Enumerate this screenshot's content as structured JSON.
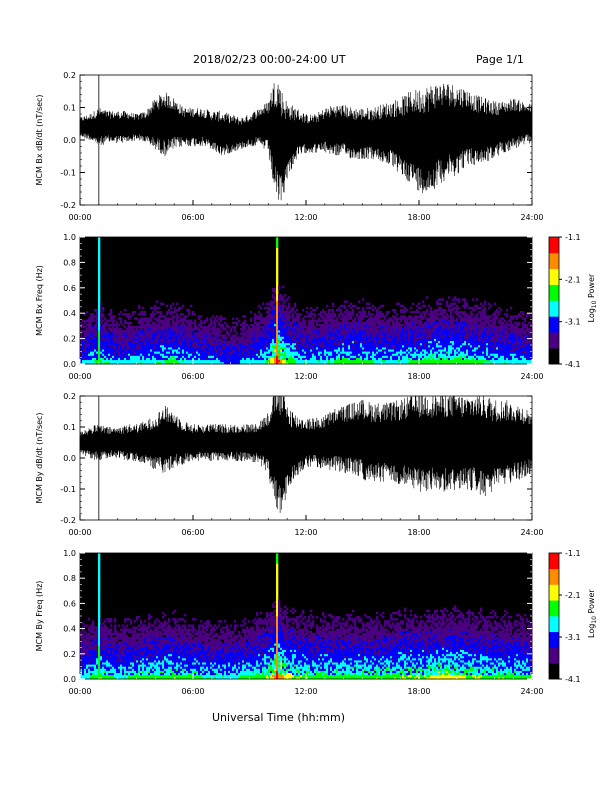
{
  "header": {
    "date_range": "2018/02/23  00:00-24:00 UT",
    "page_label": "Page 1/1"
  },
  "x_axis": {
    "label": "Universal Time (hh:mm)",
    "ticks": [
      "00:00",
      "06:00",
      "12:00",
      "18:00",
      "24:00"
    ]
  },
  "colors": {
    "trace": "#000000",
    "background_spectrogram": "#000000"
  },
  "colorbar": {
    "title": "Log10 Power",
    "title_base": "Log",
    "title_sub": "10",
    "title_rest": " Power",
    "ticks": [
      "-1.1",
      "-2.1",
      "-3.1",
      "-4.1"
    ],
    "colors": [
      "#000000",
      "#4b0082",
      "#0000ff",
      "#00ffff",
      "#00ff00",
      "#ffff00",
      "#ff8c00",
      "#ff0000"
    ]
  },
  "chart_data": [
    {
      "type": "line",
      "title": "",
      "ylabel": "MCM Bx dB/dt (nT/sec)",
      "xlabel": "",
      "x_range_hours": [
        0,
        24
      ],
      "ylim": [
        -0.2,
        0.2
      ],
      "yticks": [
        "0.2",
        "0.1",
        "0.0",
        "-0.1",
        "-0.2"
      ],
      "series": [
        {
          "x_hours": [
            0,
            0.5,
            1,
            1.5,
            2,
            2.5,
            3,
            3.5,
            4,
            4.5,
            5,
            5.5,
            6,
            6.5,
            7,
            7.5,
            8,
            8.5,
            9,
            9.5,
            10,
            10.25,
            10.5,
            10.75,
            11,
            11.5,
            12,
            12.5,
            13,
            13.5,
            14,
            14.5,
            15,
            15.5,
            16,
            16.5,
            17,
            17.5,
            18,
            18.5,
            19,
            19.5,
            20,
            20.5,
            21,
            21.5,
            22,
            22.5,
            23,
            23.5,
            24
          ],
          "center": [
            0.04,
            0.04,
            0.04,
            0.04,
            0.04,
            0.04,
            0.04,
            0.04,
            0.05,
            0.05,
            0.05,
            0.04,
            0.04,
            0.04,
            0.03,
            0.02,
            0.02,
            0.02,
            0.03,
            0.04,
            0.04,
            0.02,
            0.0,
            -0.02,
            0.0,
            0.02,
            0.02,
            0.02,
            0.03,
            0.03,
            0.03,
            0.02,
            0.02,
            0.02,
            0.02,
            0.02,
            0.01,
            0.01,
            0.0,
            0.0,
            0.02,
            0.03,
            0.03,
            0.04,
            0.03,
            0.03,
            0.03,
            0.04,
            0.05,
            0.05,
            0.05
          ],
          "amplitude": [
            0.03,
            0.04,
            0.06,
            0.05,
            0.05,
            0.05,
            0.04,
            0.05,
            0.08,
            0.1,
            0.08,
            0.06,
            0.06,
            0.06,
            0.06,
            0.07,
            0.06,
            0.05,
            0.05,
            0.06,
            0.08,
            0.16,
            0.2,
            0.17,
            0.12,
            0.08,
            0.06,
            0.06,
            0.07,
            0.08,
            0.08,
            0.08,
            0.08,
            0.08,
            0.09,
            0.1,
            0.12,
            0.14,
            0.16,
            0.17,
            0.16,
            0.15,
            0.14,
            0.12,
            0.11,
            0.1,
            0.09,
            0.08,
            0.08,
            0.07,
            0.06
          ]
        }
      ]
    },
    {
      "type": "heatmap",
      "title": "",
      "ylabel": "MCM Bx Freq (Hz)",
      "xlabel": "",
      "x_range_hours": [
        0,
        24
      ],
      "ylim": [
        0.0,
        1.0
      ],
      "yticks": [
        "1.0",
        "0.8",
        "0.6",
        "0.4",
        "0.2",
        "0.0"
      ],
      "zlim": [
        -4.1,
        -1.1
      ],
      "activity_hours": [
        0,
        1,
        2,
        3,
        4,
        5,
        6,
        7,
        8,
        9,
        10,
        10.5,
        11,
        12,
        13,
        14,
        15,
        16,
        17,
        18,
        19,
        20,
        21,
        22,
        23,
        24
      ],
      "activity_level": [
        0.35,
        0.55,
        0.4,
        0.45,
        0.5,
        0.55,
        0.45,
        0.4,
        0.35,
        0.4,
        0.55,
        1.0,
        0.6,
        0.45,
        0.5,
        0.55,
        0.55,
        0.5,
        0.5,
        0.55,
        0.6,
        0.6,
        0.55,
        0.5,
        0.45,
        0.4
      ],
      "spike_hours": [
        1.0,
        10.45
      ]
    },
    {
      "type": "line",
      "title": "",
      "ylabel": "MCM By dB/dt (nT/sec)",
      "xlabel": "",
      "x_range_hours": [
        0,
        24
      ],
      "ylim": [
        -0.2,
        0.2
      ],
      "yticks": [
        "0.2",
        "0.1",
        "0.0",
        "-0.1",
        "-0.2"
      ],
      "series": [
        {
          "x_hours": [
            0,
            0.5,
            1,
            1.5,
            2,
            2.5,
            3,
            3.5,
            4,
            4.5,
            5,
            5.5,
            6,
            6.5,
            7,
            7.5,
            8,
            8.5,
            9,
            9.5,
            10,
            10.25,
            10.5,
            10.75,
            11,
            11.5,
            12,
            12.5,
            13,
            13.5,
            14,
            14.5,
            15,
            15.5,
            16,
            16.5,
            17,
            17.5,
            18,
            18.5,
            19,
            19.5,
            20,
            20.5,
            21,
            21.5,
            22,
            22.5,
            23,
            23.5,
            24
          ],
          "center": [
            0.05,
            0.05,
            0.05,
            0.05,
            0.05,
            0.05,
            0.05,
            0.05,
            0.05,
            0.06,
            0.06,
            0.05,
            0.05,
            0.05,
            0.05,
            0.05,
            0.05,
            0.05,
            0.05,
            0.05,
            0.05,
            0.04,
            0.03,
            0.02,
            0.03,
            0.04,
            0.05,
            0.05,
            0.05,
            0.06,
            0.06,
            0.06,
            0.06,
            0.05,
            0.05,
            0.05,
            0.05,
            0.05,
            0.05,
            0.05,
            0.05,
            0.05,
            0.05,
            0.05,
            0.05,
            0.04,
            0.04,
            0.05,
            0.05,
            0.05,
            0.05
          ],
          "amplitude": [
            0.04,
            0.05,
            0.06,
            0.05,
            0.05,
            0.06,
            0.06,
            0.07,
            0.09,
            0.11,
            0.09,
            0.07,
            0.06,
            0.06,
            0.06,
            0.06,
            0.06,
            0.06,
            0.06,
            0.07,
            0.1,
            0.18,
            0.22,
            0.2,
            0.15,
            0.1,
            0.08,
            0.08,
            0.09,
            0.1,
            0.11,
            0.12,
            0.13,
            0.13,
            0.13,
            0.13,
            0.14,
            0.15,
            0.16,
            0.16,
            0.16,
            0.16,
            0.16,
            0.15,
            0.16,
            0.17,
            0.15,
            0.14,
            0.13,
            0.12,
            0.1
          ]
        }
      ]
    },
    {
      "type": "heatmap",
      "title": "",
      "ylabel": "MCM By Freq (Hz)",
      "xlabel": "",
      "x_range_hours": [
        0,
        24
      ],
      "ylim": [
        0.0,
        1.0
      ],
      "yticks": [
        "1.0",
        "0.8",
        "0.6",
        "0.4",
        "0.2",
        "0.0"
      ],
      "zlim": [
        -4.1,
        -1.1
      ],
      "activity_hours": [
        0,
        1,
        2,
        3,
        4,
        5,
        6,
        7,
        8,
        9,
        10,
        10.5,
        11,
        12,
        13,
        14,
        15,
        16,
        17,
        18,
        19,
        20,
        21,
        22,
        23,
        24
      ],
      "activity_level": [
        0.45,
        0.6,
        0.5,
        0.55,
        0.6,
        0.6,
        0.55,
        0.5,
        0.5,
        0.55,
        0.65,
        1.0,
        0.7,
        0.6,
        0.6,
        0.6,
        0.6,
        0.6,
        0.65,
        0.65,
        0.7,
        0.7,
        0.65,
        0.6,
        0.6,
        0.55
      ],
      "spike_hours": [
        1.0,
        10.45
      ]
    }
  ]
}
